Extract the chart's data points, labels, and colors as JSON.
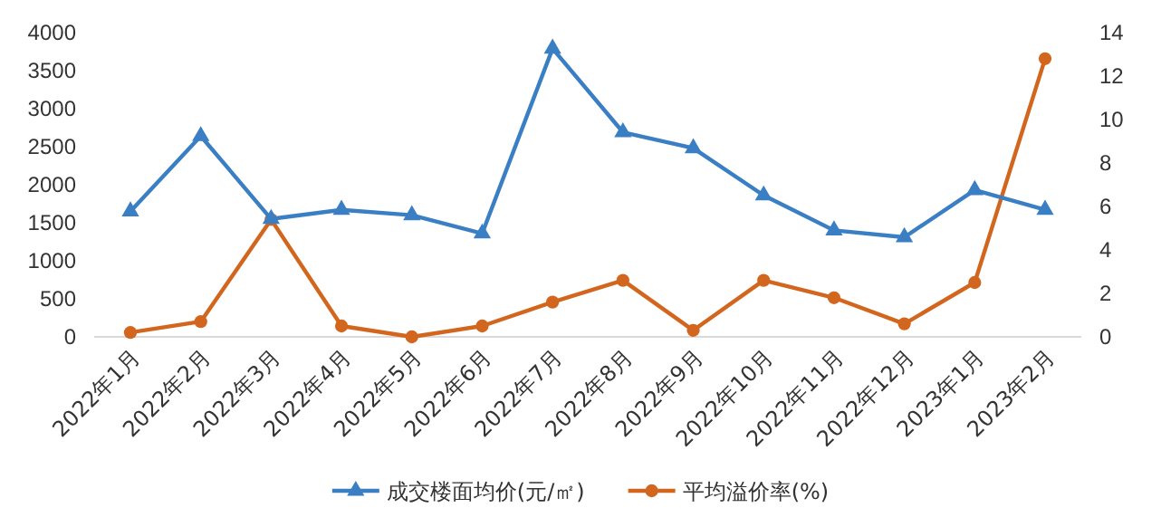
{
  "chart_data": {
    "type": "line",
    "categories": [
      "2022年1月",
      "2022年2月",
      "2022年3月",
      "2022年4月",
      "2022年5月",
      "2022年6月",
      "2022年7月",
      "2022年8月",
      "2022年9月",
      "2022年10月",
      "2022年11月",
      "2022年12月",
      "2023年1月",
      "2023年2月"
    ],
    "series": [
      {
        "name": "成交楼面均价(元/㎡)",
        "color": "#3a7fc4",
        "marker": "triangle",
        "values": [
          1650,
          2640,
          1550,
          1670,
          1600,
          1360,
          3790,
          2690,
          2480,
          1860,
          1400,
          1310,
          1930,
          1670
        ]
      },
      {
        "name": "平均溢价率(%)",
        "color": "#d3661e",
        "marker": "circle",
        "axis": "y2",
        "values": [
          0.2,
          0.7,
          5.4,
          0.5,
          0,
          0.5,
          1.6,
          2.6,
          0.3,
          2.6,
          1.8,
          0.6,
          2.5,
          12.8
        ]
      }
    ],
    "ylim": [
      0,
      4000
    ],
    "yticks": [
      0,
      500,
      1000,
      1500,
      2000,
      2500,
      3000,
      3500,
      4000
    ],
    "y2lim": [
      0,
      14
    ],
    "y2ticks": [
      0,
      2,
      4,
      6,
      8,
      10,
      12,
      14
    ],
    "grid": false,
    "legend": "bottom",
    "line_style": "solid"
  }
}
